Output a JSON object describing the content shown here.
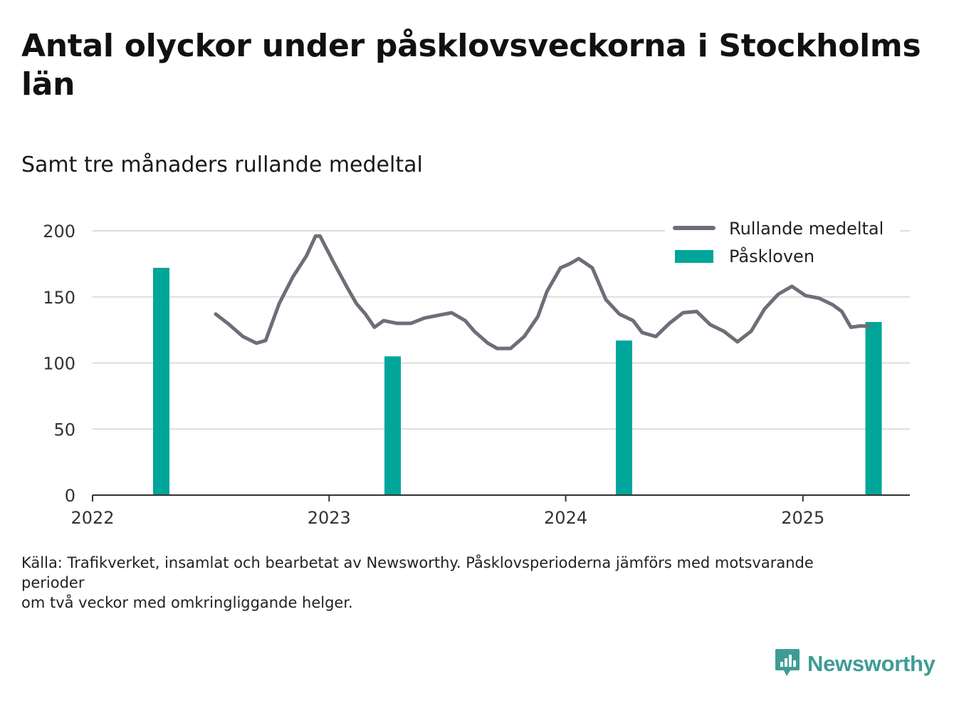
{
  "title": "Antal olyckor under påsklovsveckorna i Stockholms län",
  "subtitle": "Samt tre månaders rullande medeltal",
  "source_lines": [
    "Källa: Trafikverket, insamlat och bearbetat av Newsworthy. Påsklovsperioderna jämförs med motsvarande perioder",
    "om två veckor med omkringliggande helger."
  ],
  "brand": "Newsworthy",
  "colors": {
    "line": "#6e6e78",
    "bar": "#00a699",
    "grid": "#dddddd",
    "axis": "#333333",
    "brand": "#3f9c94"
  },
  "chart_data": {
    "type": "bar",
    "xlim": [
      "2022-01-01",
      "2025-06-15"
    ],
    "ylim": [
      0,
      200
    ],
    "yticks": [
      0,
      50,
      100,
      150,
      200
    ],
    "xticks": [
      {
        "date": "2022-01-01",
        "label": "2022"
      },
      {
        "date": "2023-01-01",
        "label": "2023"
      },
      {
        "date": "2024-01-01",
        "label": "2024"
      },
      {
        "date": "2025-01-01",
        "label": "2025"
      }
    ],
    "grid": true,
    "legend_position": "top-right",
    "series": [
      {
        "name": "Påskloven",
        "type": "bar",
        "points": [
          {
            "x": "2022-04-17",
            "y": 172
          },
          {
            "x": "2023-04-09",
            "y": 105
          },
          {
            "x": "2024-03-31",
            "y": 117
          },
          {
            "x": "2025-04-20",
            "y": 131
          }
        ]
      },
      {
        "name": "Rullande medeltal",
        "type": "line",
        "points": [
          {
            "x": "2022-07-10",
            "y": 137
          },
          {
            "x": "2022-07-31",
            "y": 129
          },
          {
            "x": "2022-08-21",
            "y": 120
          },
          {
            "x": "2022-09-11",
            "y": 115
          },
          {
            "x": "2022-09-25",
            "y": 117
          },
          {
            "x": "2022-10-16",
            "y": 145
          },
          {
            "x": "2022-11-06",
            "y": 165
          },
          {
            "x": "2022-11-27",
            "y": 181
          },
          {
            "x": "2022-12-11",
            "y": 196
          },
          {
            "x": "2022-12-18",
            "y": 196
          },
          {
            "x": "2023-01-08",
            "y": 176
          },
          {
            "x": "2023-01-29",
            "y": 157
          },
          {
            "x": "2023-02-12",
            "y": 145
          },
          {
            "x": "2023-02-26",
            "y": 137
          },
          {
            "x": "2023-03-12",
            "y": 127
          },
          {
            "x": "2023-03-26",
            "y": 132
          },
          {
            "x": "2023-04-16",
            "y": 130
          },
          {
            "x": "2023-05-07",
            "y": 130
          },
          {
            "x": "2023-05-28",
            "y": 134
          },
          {
            "x": "2023-06-18",
            "y": 136
          },
          {
            "x": "2023-07-09",
            "y": 138
          },
          {
            "x": "2023-07-30",
            "y": 132
          },
          {
            "x": "2023-08-13",
            "y": 124
          },
          {
            "x": "2023-09-03",
            "y": 115
          },
          {
            "x": "2023-09-17",
            "y": 111
          },
          {
            "x": "2023-10-08",
            "y": 111
          },
          {
            "x": "2023-10-29",
            "y": 120
          },
          {
            "x": "2023-11-19",
            "y": 135
          },
          {
            "x": "2023-12-03",
            "y": 154
          },
          {
            "x": "2023-12-24",
            "y": 172
          },
          {
            "x": "2024-01-07",
            "y": 175
          },
          {
            "x": "2024-01-21",
            "y": 179
          },
          {
            "x": "2024-02-11",
            "y": 172
          },
          {
            "x": "2024-03-03",
            "y": 148
          },
          {
            "x": "2024-03-24",
            "y": 137
          },
          {
            "x": "2024-04-14",
            "y": 132
          },
          {
            "x": "2024-04-28",
            "y": 123
          },
          {
            "x": "2024-05-19",
            "y": 120
          },
          {
            "x": "2024-06-09",
            "y": 130
          },
          {
            "x": "2024-06-30",
            "y": 138
          },
          {
            "x": "2024-07-21",
            "y": 139
          },
          {
            "x": "2024-08-11",
            "y": 129
          },
          {
            "x": "2024-09-01",
            "y": 124
          },
          {
            "x": "2024-09-22",
            "y": 116
          },
          {
            "x": "2024-10-13",
            "y": 124
          },
          {
            "x": "2024-11-03",
            "y": 141
          },
          {
            "x": "2024-11-24",
            "y": 152
          },
          {
            "x": "2024-12-15",
            "y": 158
          },
          {
            "x": "2025-01-05",
            "y": 151
          },
          {
            "x": "2025-01-26",
            "y": 149
          },
          {
            "x": "2025-02-16",
            "y": 144
          },
          {
            "x": "2025-03-02",
            "y": 139
          },
          {
            "x": "2025-03-16",
            "y": 127
          },
          {
            "x": "2025-03-30",
            "y": 128
          },
          {
            "x": "2025-04-13",
            "y": 128
          }
        ]
      }
    ]
  }
}
